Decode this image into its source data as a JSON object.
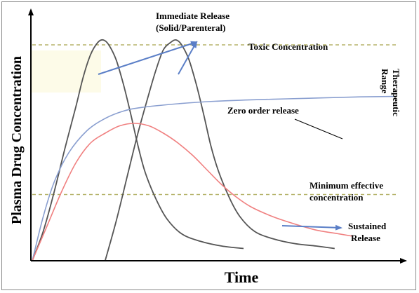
{
  "chart_data": {
    "type": "line",
    "title": "",
    "xlabel": "Time",
    "ylabel": "Plasma Drug Concentration",
    "xlim": [
      0,
      100
    ],
    "ylim": [
      0,
      100
    ],
    "grid": false,
    "reference_lines": [
      {
        "label": "Toxic Concentration",
        "y": 88
      },
      {
        "label": "Minimum effective concentration",
        "y": 27
      }
    ],
    "band": {
      "label": "Therapeutic Range",
      "y_from": 27,
      "y_to": 88
    },
    "series": [
      {
        "name": "Immediate Release (Solid/Parenteral) - dose 1",
        "color": "#555555",
        "points": [
          [
            0,
            0
          ],
          [
            3,
            12
          ],
          [
            6,
            28
          ],
          [
            9,
            46
          ],
          [
            12,
            63
          ],
          [
            14,
            75
          ],
          [
            16,
            84
          ],
          [
            18,
            89
          ],
          [
            19.5,
            90
          ],
          [
            21,
            88
          ],
          [
            23,
            82
          ],
          [
            25,
            72
          ],
          [
            27,
            60
          ],
          [
            29,
            47
          ],
          [
            31,
            36
          ],
          [
            34,
            25
          ],
          [
            37,
            17
          ],
          [
            41,
            11
          ],
          [
            46,
            8
          ],
          [
            52,
            6
          ],
          [
            58,
            5
          ]
        ]
      },
      {
        "name": "Immediate Release (Solid/Parenteral) - dose 2",
        "color": "#555555",
        "points": [
          [
            20,
            0
          ],
          [
            23,
            16
          ],
          [
            26,
            34
          ],
          [
            29,
            52
          ],
          [
            32,
            68
          ],
          [
            34,
            78
          ],
          [
            36,
            86
          ],
          [
            38,
            89
          ],
          [
            39.5,
            90
          ],
          [
            41,
            88
          ],
          [
            43,
            82
          ],
          [
            45,
            72
          ],
          [
            47,
            60
          ],
          [
            49,
            47
          ],
          [
            51,
            37
          ],
          [
            54,
            26
          ],
          [
            57,
            18
          ],
          [
            61,
            12
          ],
          [
            66,
            9
          ],
          [
            72,
            7
          ],
          [
            78,
            6
          ],
          [
            83,
            5
          ]
        ]
      },
      {
        "name": "Zero order release",
        "color": "#8a9fd0",
        "points": [
          [
            0,
            0
          ],
          [
            3,
            18
          ],
          [
            6,
            32
          ],
          [
            10,
            44
          ],
          [
            15,
            53
          ],
          [
            20,
            58
          ],
          [
            25,
            61
          ],
          [
            30,
            62.5
          ],
          [
            40,
            64
          ],
          [
            50,
            65
          ],
          [
            60,
            65.6
          ],
          [
            70,
            66
          ],
          [
            80,
            66.4
          ],
          [
            90,
            66.8
          ],
          [
            100,
            67
          ]
        ]
      },
      {
        "name": "Sustained Release",
        "color": "#f08080",
        "points": [
          [
            0,
            0
          ],
          [
            4,
            14
          ],
          [
            8,
            28
          ],
          [
            12,
            40
          ],
          [
            16,
            48
          ],
          [
            20,
            52
          ],
          [
            24,
            55
          ],
          [
            28,
            56
          ],
          [
            32,
            55
          ],
          [
            36,
            52
          ],
          [
            40,
            48
          ],
          [
            44,
            43
          ],
          [
            48,
            37
          ],
          [
            52,
            31
          ],
          [
            56,
            26
          ],
          [
            60,
            22
          ],
          [
            66,
            18
          ],
          [
            72,
            15
          ],
          [
            78,
            12.5
          ],
          [
            84,
            11
          ],
          [
            88,
            10
          ]
        ]
      }
    ],
    "annotations": [
      {
        "id": "ir",
        "text_lines": [
          "Immediate Release",
          "(Solid/Parenteral)"
        ]
      },
      {
        "id": "toxic",
        "text": "Toxic Concentration"
      },
      {
        "id": "therapeutic",
        "text_lines": [
          "Therapeutic",
          "Range"
        ]
      },
      {
        "id": "zero",
        "text": "Zero order release"
      },
      {
        "id": "mec",
        "text_lines": [
          "Minimum effective",
          "concentration"
        ]
      },
      {
        "id": "sr",
        "text_lines": [
          "Sustained",
          "Release"
        ]
      }
    ]
  },
  "colors": {
    "axis": "#000000",
    "ref_line": "#b5b36a",
    "arrow": "#5b7fc7",
    "leader": "#000000"
  }
}
